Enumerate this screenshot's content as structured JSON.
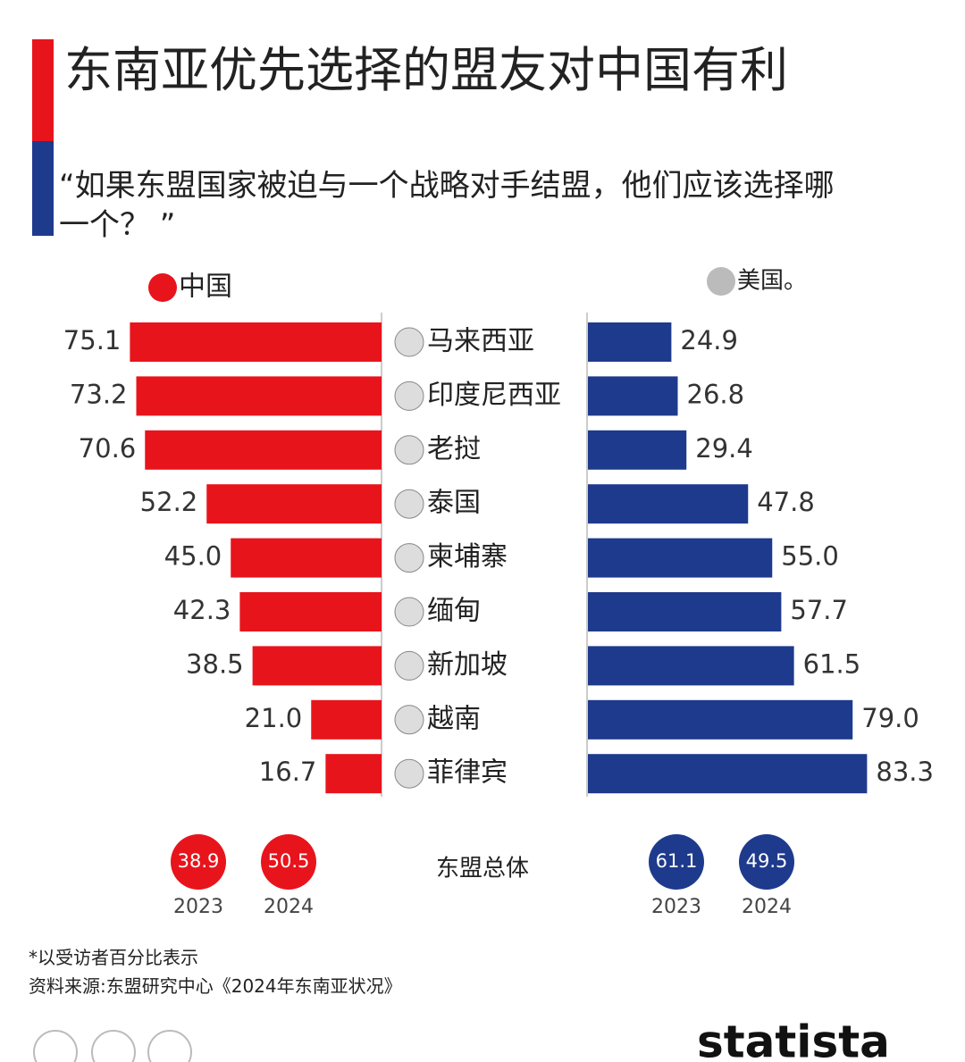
{
  "chart_data": {
    "type": "butterfly",
    "title": "东南亚优先选择的盟友对中国有利",
    "subtitle": "“如果东盟国家被迫与一个战略对手结盟，他们应该选择哪一个？ ”",
    "categories": [
      "马来西亚",
      "印度尼西亚",
      "老挝",
      "泰国",
      "柬埔寨",
      "缅甸",
      "新加坡",
      "越南",
      "菲律宾"
    ],
    "series": [
      {
        "name": "中国",
        "color": "#e8141c",
        "values": [
          75.1,
          73.2,
          70.6,
          52.2,
          45.0,
          42.3,
          38.5,
          21.0,
          16.7
        ],
        "value_labels": [
          "75.1",
          "73.2",
          "70.6",
          "52.2",
          "45.0",
          "42.3",
          "38.5",
          "21.0",
          "16.7"
        ],
        "totals": [
          38.9,
          50.5
        ]
      },
      {
        "name": "美国。",
        "color": "#1e3a8c",
        "values": [
          24.9,
          26.8,
          29.4,
          47.8,
          55.0,
          57.7,
          61.5,
          79.0,
          83.3
        ],
        "value_labels": [
          "24.9",
          "26.8",
          "29.4",
          "47.8",
          "55.0",
          "57.7",
          "61.5",
          "79.0",
          "83.3"
        ],
        "totals": [
          61.1,
          49.5
        ]
      }
    ],
    "totals_label": "东盟总体",
    "total_years": [
      "2023",
      "2024"
    ],
    "footnote": "*以受访者百分比表示",
    "source": "资料来源:东盟研究中心《2024年东南亚状况》",
    "brand": "statista"
  }
}
